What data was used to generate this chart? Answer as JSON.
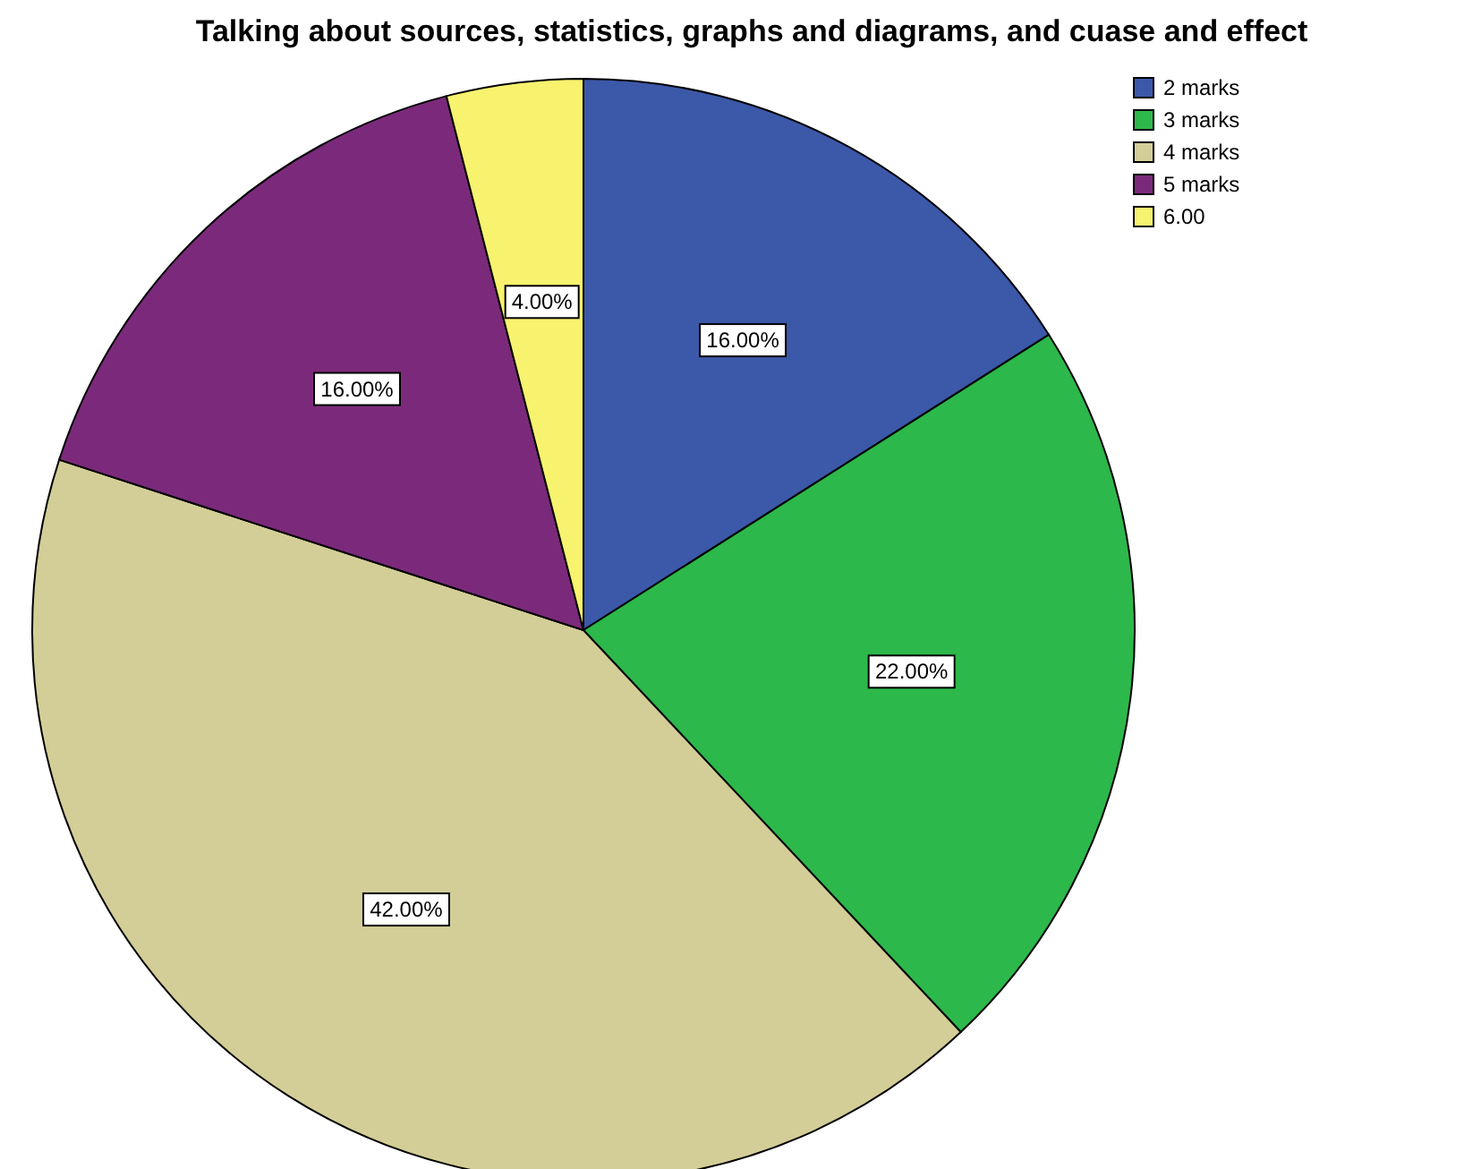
{
  "chart_data": {
    "type": "pie",
    "title": "Talking about sources, statistics, graphs and diagrams, and cuase and effect",
    "categories": [
      "2 marks",
      "3 marks",
      "4 marks",
      "5 marks",
      "6.00"
    ],
    "values": [
      16,
      22,
      42,
      16,
      4
    ],
    "colors": [
      "#3c58a8",
      "#2db84b",
      "#d3ce97",
      "#7b2a7b",
      "#f8f36e"
    ],
    "value_labels": [
      "16.00%",
      "22.00%",
      "42.00%",
      "16.00%",
      "4.00%"
    ],
    "legend": "top right"
  }
}
